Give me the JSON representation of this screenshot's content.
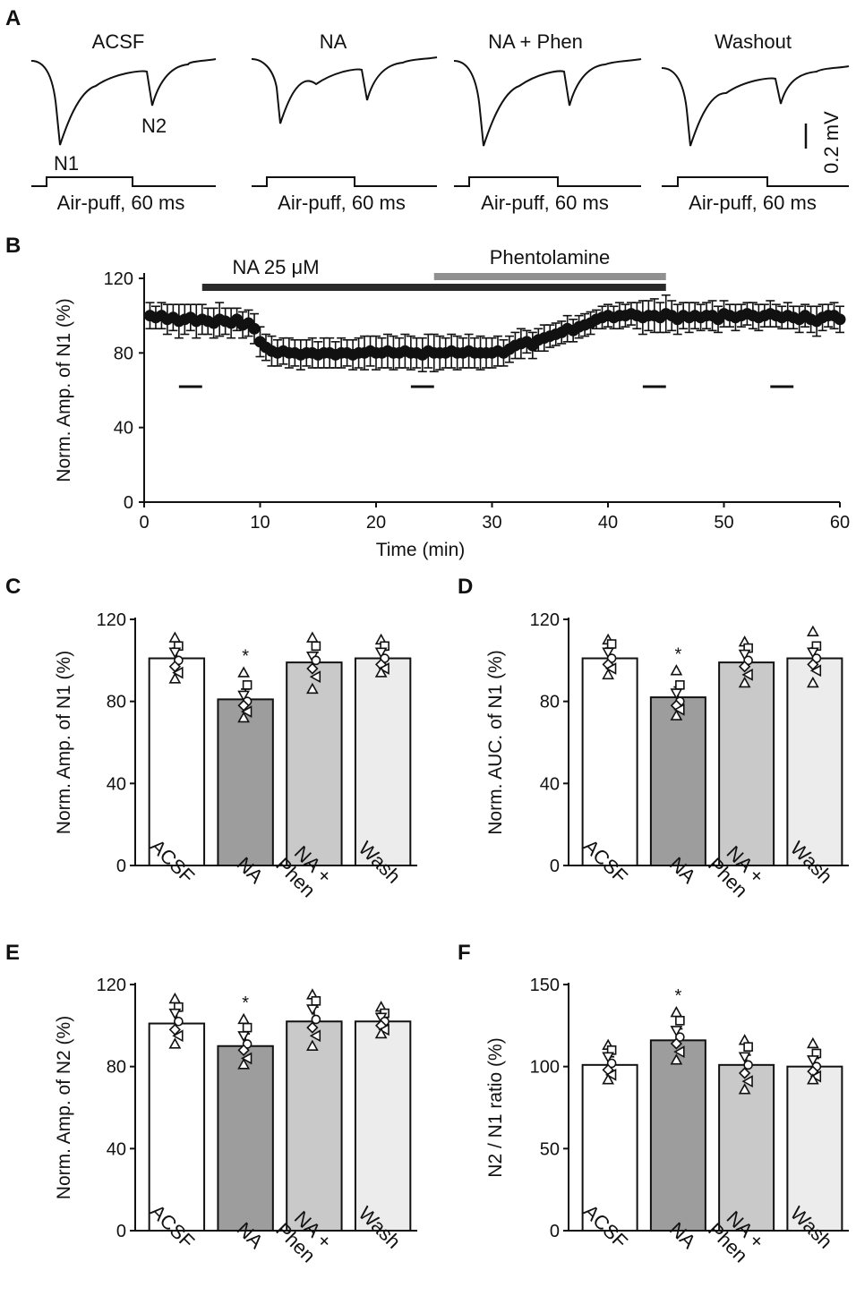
{
  "colors": {
    "acsf": "#ffffff",
    "na": "#9d9d9d",
    "phen": "#c9c9c9",
    "wash": "#ececec",
    "ink": "#111111",
    "na_bar": "#2a2a2a",
    "phen_bar": "#909090"
  },
  "panel_a": {
    "letter": "A",
    "traces": [
      {
        "title": "ACSF",
        "stim": "Air-puff, 60 ms",
        "peak_labels": [
          "N1",
          "N2"
        ]
      },
      {
        "title": "NA",
        "stim": "Air-puff, 60 ms"
      },
      {
        "title": "NA + Phen",
        "stim": "Air-puff, 60 ms"
      },
      {
        "title": "Washout",
        "stim": "Air-puff, 60 ms"
      }
    ],
    "scale_bar": "0.2 mV"
  },
  "chart_data": [
    {
      "id": "B",
      "letter": "B",
      "type": "scatter",
      "ylabel": "Norm. Amp. of N1 (%)",
      "xlabel": "Time (min)",
      "xlim": [
        0,
        60
      ],
      "ylim": [
        0,
        120
      ],
      "xticks": [
        "0",
        "10",
        "20",
        "30",
        "40",
        "50",
        "60"
      ],
      "yticks": [
        "0",
        "40",
        "80",
        "120"
      ],
      "drug_bars": [
        {
          "label": "NA 25 μM",
          "start": 5,
          "end": 45
        },
        {
          "label": "Phentolamine",
          "start": 25,
          "end": 45
        }
      ],
      "analysis_windows": [
        [
          3,
          5
        ],
        [
          23,
          25
        ],
        [
          43,
          45
        ],
        [
          54,
          56
        ]
      ],
      "x": [
        0.5,
        1.0,
        1.5,
        2.0,
        2.5,
        3.0,
        3.5,
        4.0,
        4.5,
        5.0,
        5.5,
        6.0,
        6.5,
        7.0,
        7.5,
        8.0,
        8.5,
        9.0,
        9.5,
        10.0,
        10.5,
        11.0,
        11.5,
        12.0,
        12.5,
        13.0,
        13.5,
        14.0,
        14.5,
        15.0,
        15.5,
        16.0,
        16.5,
        17.0,
        17.5,
        18.0,
        18.5,
        19.0,
        19.5,
        20.0,
        20.5,
        21.0,
        21.5,
        22.0,
        22.5,
        23.0,
        23.5,
        24.0,
        24.5,
        25.0,
        25.5,
        26.0,
        26.5,
        27.0,
        27.5,
        28.0,
        28.5,
        29.0,
        29.5,
        30.0,
        30.5,
        31.0,
        31.5,
        32.0,
        32.5,
        33.0,
        33.5,
        34.0,
        34.5,
        35.0,
        35.5,
        36.0,
        36.5,
        37.0,
        37.5,
        38.0,
        38.5,
        39.0,
        39.5,
        40.0,
        40.5,
        41.0,
        41.5,
        42.0,
        42.5,
        43.0,
        43.5,
        44.0,
        44.5,
        45.0,
        45.5,
        46.0,
        46.5,
        47.0,
        47.5,
        48.0,
        48.5,
        49.0,
        49.5,
        50.0,
        50.5,
        51.0,
        51.5,
        52.0,
        52.5,
        53.0,
        53.5,
        54.0,
        54.5,
        55.0,
        55.5,
        56.0,
        56.5,
        57.0,
        57.5,
        58.0,
        58.5,
        59.0,
        59.5,
        60.0
      ],
      "y": [
        100,
        99,
        100,
        98,
        99,
        97,
        98,
        99,
        97,
        98,
        97,
        96,
        98,
        97,
        96,
        98,
        95,
        96,
        93,
        86,
        83,
        81,
        80,
        81,
        80,
        80,
        79,
        80,
        80,
        79,
        80,
        80,
        79,
        80,
        80,
        79,
        80,
        80,
        81,
        80,
        80,
        81,
        80,
        80,
        81,
        80,
        80,
        79,
        81,
        80,
        80,
        80,
        81,
        80,
        80,
        81,
        80,
        80,
        80,
        80,
        81,
        80,
        82,
        84,
        85,
        86,
        84,
        87,
        88,
        89,
        90,
        91,
        93,
        92,
        94,
        95,
        96,
        98,
        99,
        100,
        99,
        100,
        100,
        101,
        100,
        99,
        100,
        100,
        99,
        101,
        100,
        98,
        100,
        99,
        100,
        99,
        100,
        100,
        98,
        101,
        100,
        99,
        100,
        101,
        100,
        99,
        100,
        101,
        100,
        99,
        100,
        99,
        98,
        100,
        98,
        97,
        99,
        100,
        100,
        98
      ],
      "error": [
        7,
        6,
        7,
        8,
        7,
        9,
        8,
        7,
        9,
        8,
        7,
        8,
        9,
        7,
        8,
        6,
        7,
        7,
        8,
        8,
        7,
        8,
        7,
        7,
        8,
        7,
        8,
        7,
        8,
        7,
        8,
        8,
        7,
        8,
        7,
        8,
        8,
        9,
        8,
        9,
        8,
        9,
        9,
        8,
        9,
        9,
        8,
        9,
        9,
        10,
        9,
        8,
        9,
        9,
        8,
        9,
        8,
        9,
        8,
        8,
        8,
        7,
        7,
        7,
        8,
        6,
        7,
        6,
        7,
        6,
        6,
        6,
        7,
        6,
        6,
        6,
        6,
        5,
        6,
        6,
        6,
        7,
        6,
        6,
        7,
        9,
        8,
        9,
        8,
        10,
        8,
        8,
        7,
        8,
        7,
        7,
        7,
        8,
        7,
        7,
        6,
        7,
        6,
        6,
        7,
        7,
        6,
        7,
        6,
        6,
        7,
        6,
        7,
        6,
        7,
        8,
        7,
        6,
        7,
        7
      ]
    },
    {
      "id": "C",
      "letter": "C",
      "type": "bar",
      "ylabel": "Norm. Amp. of N1 (%)",
      "categories": [
        "ACSF",
        "NA",
        "NA +\nPhen",
        "Wash"
      ],
      "values": [
        101,
        81,
        99,
        101
      ],
      "errors": [
        5,
        5,
        5,
        4
      ],
      "significance": [
        "",
        "*",
        "",
        ""
      ],
      "ylim": [
        0,
        120
      ],
      "yticks": [
        "0",
        "40",
        "80",
        "120"
      ],
      "points": [
        [
          111,
          107,
          104,
          100,
          97,
          94,
          91
        ],
        [
          94,
          88,
          83,
          80,
          78,
          75,
          72
        ],
        [
          111,
          107,
          102,
          100,
          96,
          92,
          86
        ],
        [
          110,
          107,
          104,
          101,
          98,
          96,
          94
        ]
      ]
    },
    {
      "id": "D",
      "letter": "D",
      "type": "bar",
      "ylabel": "Norm. AUC. of N1 (%)",
      "categories": [
        "ACSF",
        "NA",
        "NA +\nPhen",
        "Wash"
      ],
      "values": [
        101,
        82,
        99,
        101
      ],
      "errors": [
        5,
        5,
        5,
        5
      ],
      "significance": [
        "",
        "*",
        "",
        ""
      ],
      "ylim": [
        0,
        120
      ],
      "yticks": [
        "0",
        "40",
        "80",
        "120"
      ],
      "points": [
        [
          110,
          108,
          104,
          101,
          98,
          96,
          93
        ],
        [
          95,
          88,
          84,
          80,
          78,
          76,
          73
        ],
        [
          109,
          106,
          103,
          100,
          97,
          93,
          89
        ],
        [
          114,
          107,
          104,
          101,
          98,
          95,
          89
        ]
      ]
    },
    {
      "id": "E",
      "letter": "E",
      "type": "bar",
      "ylabel": "Norm. Amp. of N2 (%)",
      "categories": [
        "ACSF",
        "NA",
        "NA +\nPhen",
        "Wash"
      ],
      "values": [
        101,
        90,
        102,
        102
      ],
      "errors": [
        6,
        6,
        7,
        4
      ],
      "significance": [
        "",
        "*",
        "",
        ""
      ],
      "ylim": [
        0,
        120
      ],
      "yticks": [
        "0",
        "40",
        "80",
        "120"
      ],
      "points": [
        [
          113,
          109,
          106,
          102,
          98,
          95,
          91
        ],
        [
          103,
          99,
          95,
          91,
          88,
          84,
          81
        ],
        [
          115,
          112,
          108,
          103,
          99,
          95,
          90
        ],
        [
          109,
          106,
          104,
          102,
          100,
          98,
          96
        ]
      ]
    },
    {
      "id": "F",
      "letter": "F",
      "type": "bar",
      "ylabel": "N2 / N1 ratio (%)",
      "categories": [
        "ACSF",
        "NA",
        "NA +\nPhen",
        "Wash"
      ],
      "values": [
        101,
        116,
        101,
        100
      ],
      "errors": [
        5,
        7,
        6,
        5
      ],
      "significance": [
        "",
        "*",
        "",
        ""
      ],
      "ylim": [
        0,
        150
      ],
      "yticks": [
        "0",
        "50",
        "100",
        "150"
      ],
      "points": [
        [
          113,
          110,
          106,
          102,
          98,
          95,
          92
        ],
        [
          133,
          128,
          122,
          118,
          114,
          109,
          104
        ],
        [
          116,
          112,
          106,
          101,
          96,
          91,
          86
        ],
        [
          114,
          108,
          104,
          100,
          97,
          94,
          92
        ]
      ]
    }
  ]
}
